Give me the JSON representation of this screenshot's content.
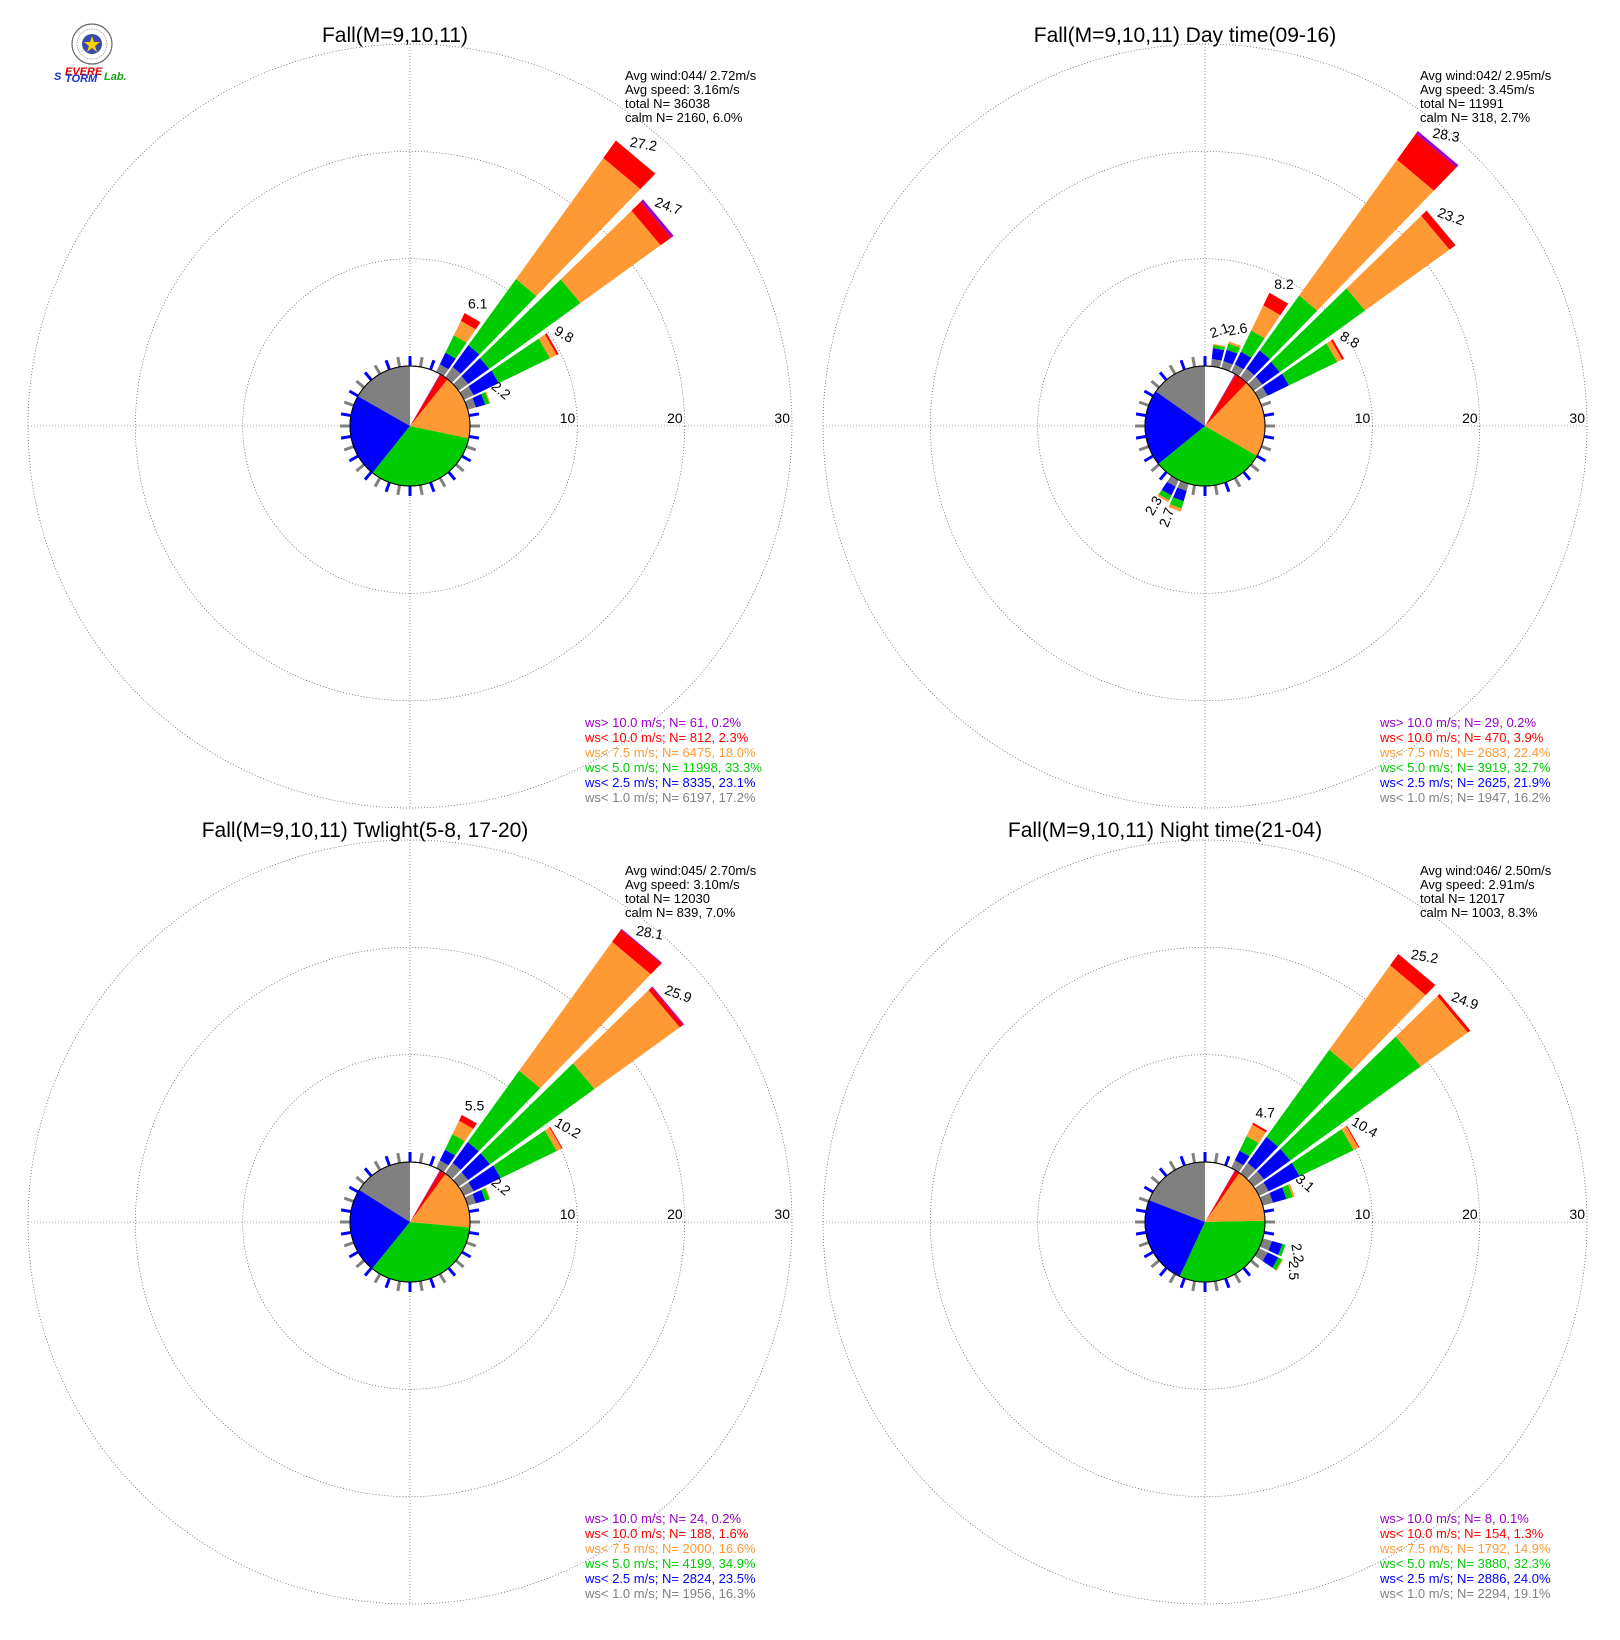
{
  "logo": {
    "text_s": "S",
    "text_evere": "EVERE",
    "text_torm": "TORM",
    "text_lab": "Lab."
  },
  "colors": {
    "gt10": "#9a00c8",
    "lt10": "#ff0000",
    "lt75": "#ff9933",
    "lt5": "#00cc00",
    "lt25": "#0000ff",
    "lt1": "#808080",
    "grid": "#555555"
  },
  "chart_data": [
    {
      "type": "wind-rose",
      "title": "Fall(M=9,10,11)",
      "stats": [
        "Avg wind:044/ 2.72m/s",
        "Avg speed: 3.16m/s",
        "total N=      36038",
        "calm N=   2160,   6.0%"
      ],
      "rings": [
        10,
        20,
        30
      ],
      "legend": [
        {
          "text": "ws> 10.0 m/s; N=     61,  0.2%",
          "class": "gt10"
        },
        {
          "text": "ws< 10.0 m/s; N=    812,  2.3%",
          "class": "lt10"
        },
        {
          "text": "ws<  7.5 m/s; N=   6475, 18.0%",
          "class": "lt75"
        },
        {
          "text": "ws<  5.0 m/s; N=  11998, 33.3%",
          "class": "lt5"
        },
        {
          "text": "ws<  2.5 m/s; N=   8335, 23.1%",
          "class": "lt25"
        },
        {
          "text": "ws<  1.0 m/s; N=   6197, 17.2%",
          "class": "lt1"
        }
      ],
      "pie": [
        17.2,
        23.1,
        33.3,
        18.0,
        2.3,
        0.2
      ],
      "petals": [
        {
          "dir": 30,
          "total": 6.1,
          "label": "6.1",
          "segs": [
            0.8,
            1.2,
            1.8,
            1.5,
            0.8,
            0.0
          ]
        },
        {
          "dir": 40,
          "total": 27.2,
          "label": "27.2",
          "segs": [
            1.2,
            2.5,
            7.6,
            13.9,
            2.0,
            0.0
          ]
        },
        {
          "dir": 50,
          "total": 24.7,
          "label": "24.7",
          "segs": [
            1.1,
            2.4,
            10.5,
            9.2,
            1.2,
            0.3
          ]
        },
        {
          "dir": 60,
          "total": 9.8,
          "label": "9.8",
          "segs": [
            1.0,
            2.6,
            5.3,
            0.7,
            0.2,
            0.0
          ]
        },
        {
          "dir": 70,
          "total": 2.2,
          "label": "2.2",
          "segs": [
            0.8,
            0.9,
            0.4,
            0.1,
            0.0,
            0.0
          ]
        }
      ]
    },
    {
      "type": "wind-rose",
      "title": "Fall(M=9,10,11) Day time(09-16)",
      "stats": [
        "Avg wind:042/ 2.95m/s",
        "Avg speed: 3.45m/s",
        "total N=      11991",
        "calm N=    318,   2.7%"
      ],
      "rings": [
        10,
        20,
        30
      ],
      "legend": [
        {
          "text": "ws> 10.0 m/s; N=     29,  0.2%",
          "class": "gt10"
        },
        {
          "text": "ws< 10.0 m/s; N=    470,  3.9%",
          "class": "lt10"
        },
        {
          "text": "ws<  7.5 m/s; N=   2683, 22.4%",
          "class": "lt75"
        },
        {
          "text": "ws<  5.0 m/s; N=   3919, 32.7%",
          "class": "lt5"
        },
        {
          "text": "ws<  2.5 m/s; N=   2625, 21.9%",
          "class": "lt25"
        },
        {
          "text": "ws<  1.0 m/s; N=   1947, 16.2%",
          "class": "lt1"
        }
      ],
      "pie": [
        16.2,
        21.9,
        32.7,
        22.4,
        3.9,
        0.2
      ],
      "petals": [
        {
          "dir": 10,
          "total": 2.1,
          "label": "2.1",
          "segs": [
            0.7,
            1.0,
            0.3,
            0.1,
            0.0,
            0.0
          ]
        },
        {
          "dir": 20,
          "total": 2.6,
          "label": "2.6",
          "segs": [
            0.7,
            1.1,
            0.6,
            0.2,
            0.0,
            0.0
          ]
        },
        {
          "dir": 30,
          "total": 8.2,
          "label": "8.2",
          "segs": [
            0.8,
            1.3,
            2.2,
            2.6,
            1.3,
            0.0
          ]
        },
        {
          "dir": 40,
          "total": 28.3,
          "label": "28.3",
          "segs": [
            1.0,
            2.1,
            6.3,
            15.6,
            3.0,
            0.3
          ]
        },
        {
          "dir": 50,
          "total": 23.2,
          "label": "23.2",
          "segs": [
            1.0,
            2.0,
            9.8,
            9.7,
            0.7,
            0.0
          ]
        },
        {
          "dir": 60,
          "total": 8.8,
          "label": "8.8",
          "segs": [
            0.9,
            2.2,
            5.0,
            0.5,
            0.2,
            0.0
          ]
        },
        {
          "dir": 210,
          "total": 2.3,
          "label": "2.3",
          "segs": [
            0.7,
            0.9,
            0.5,
            0.2,
            0.0,
            0.0
          ]
        },
        {
          "dir": 200,
          "total": 2.7,
          "label": "2.7",
          "segs": [
            0.7,
            1.0,
            0.7,
            0.3,
            0.0,
            0.0
          ]
        }
      ]
    },
    {
      "type": "wind-rose",
      "title": "Fall(M=9,10,11) Twlight(5-8, 17-20)",
      "stats": [
        "Avg wind:045/ 2.70m/s",
        "Avg speed: 3.10m/s",
        "total N=      12030",
        "calm N=    839,   7.0%"
      ],
      "rings": [
        10,
        20,
        30
      ],
      "legend": [
        {
          "text": "ws> 10.0 m/s; N=     24,  0.2%",
          "class": "gt10"
        },
        {
          "text": "ws< 10.0 m/s; N=    188,  1.6%",
          "class": "lt10"
        },
        {
          "text": "ws<  7.5 m/s; N=   2000, 16.6%",
          "class": "lt75"
        },
        {
          "text": "ws<  5.0 m/s; N=   4199, 34.9%",
          "class": "lt5"
        },
        {
          "text": "ws<  2.5 m/s; N=   2824, 23.5%",
          "class": "lt25"
        },
        {
          "text": "ws<  1.0 m/s; N=   1956, 16.3%",
          "class": "lt1"
        }
      ],
      "pie": [
        16.3,
        23.5,
        34.9,
        16.6,
        1.6,
        0.2
      ],
      "petals": [
        {
          "dir": 30,
          "total": 5.5,
          "label": "5.5",
          "segs": [
            0.8,
            1.1,
            1.6,
            1.4,
            0.6,
            0.0
          ]
        },
        {
          "dir": 40,
          "total": 28.1,
          "label": "28.1",
          "segs": [
            1.2,
            2.4,
            8.2,
            14.8,
            1.4,
            0.1
          ]
        },
        {
          "dir": 50,
          "total": 25.9,
          "label": "25.9",
          "segs": [
            1.1,
            2.5,
            12.0,
            9.8,
            0.4,
            0.1
          ]
        },
        {
          "dir": 60,
          "total": 10.2,
          "label": "10.2",
          "segs": [
            1.0,
            2.8,
            5.8,
            0.5,
            0.1,
            0.0
          ]
        },
        {
          "dir": 70,
          "total": 2.2,
          "label": "2.2",
          "segs": [
            0.8,
            0.9,
            0.4,
            0.1,
            0.0,
            0.0
          ]
        }
      ]
    },
    {
      "type": "wind-rose",
      "title": "Fall(M=9,10,11) Night time(21-04)",
      "stats": [
        "Avg wind:046/ 2.50m/s",
        "Avg speed: 2.91m/s",
        "total N=      12017",
        "calm N=   1003,   8.3%"
      ],
      "rings": [
        10,
        20,
        30
      ],
      "legend": [
        {
          "text": "ws> 10.0 m/s; N=      8,  0.1%",
          "class": "gt10"
        },
        {
          "text": "ws< 10.0 m/s; N=    154,  1.3%",
          "class": "lt10"
        },
        {
          "text": "ws<  7.5 m/s; N=   1792, 14.9%",
          "class": "lt75"
        },
        {
          "text": "ws<  5.0 m/s; N=   3880, 32.3%",
          "class": "lt5"
        },
        {
          "text": "ws<  2.5 m/s; N=   2886, 24.0%",
          "class": "lt25"
        },
        {
          "text": "ws<  1.0 m/s; N=   2294, 19.1%",
          "class": "lt1"
        }
      ],
      "pie": [
        19.1,
        24.0,
        32.3,
        14.9,
        1.3,
        0.1
      ],
      "petals": [
        {
          "dir": 30,
          "total": 4.7,
          "label": "4.7",
          "segs": [
            0.8,
            1.0,
            1.5,
            1.2,
            0.2,
            0.0
          ]
        },
        {
          "dir": 40,
          "total": 25.2,
          "label": "25.2",
          "segs": [
            1.2,
            3.0,
            10.0,
            9.7,
            1.3,
            0.0
          ]
        },
        {
          "dir": 50,
          "total": 24.9,
          "label": "24.9",
          "segs": [
            1.2,
            3.0,
            15.0,
            5.4,
            0.3,
            0.0
          ]
        },
        {
          "dir": 60,
          "total": 10.4,
          "label": "10.4",
          "segs": [
            1.0,
            3.2,
            5.6,
            0.5,
            0.1,
            0.0
          ]
        },
        {
          "dir": 70,
          "total": 3.1,
          "label": "3.1",
          "segs": [
            1.0,
            1.3,
            0.6,
            0.2,
            0.0,
            0.0
          ]
        },
        {
          "dir": 120,
          "total": 2.5,
          "label": "2.5",
          "segs": [
            0.9,
            1.1,
            0.4,
            0.1,
            0.0,
            0.0
          ]
        },
        {
          "dir": 110,
          "total": 2.2,
          "label": "2.2",
          "segs": [
            0.9,
            1.0,
            0.3,
            0.0,
            0.0,
            0.0
          ]
        }
      ]
    }
  ]
}
